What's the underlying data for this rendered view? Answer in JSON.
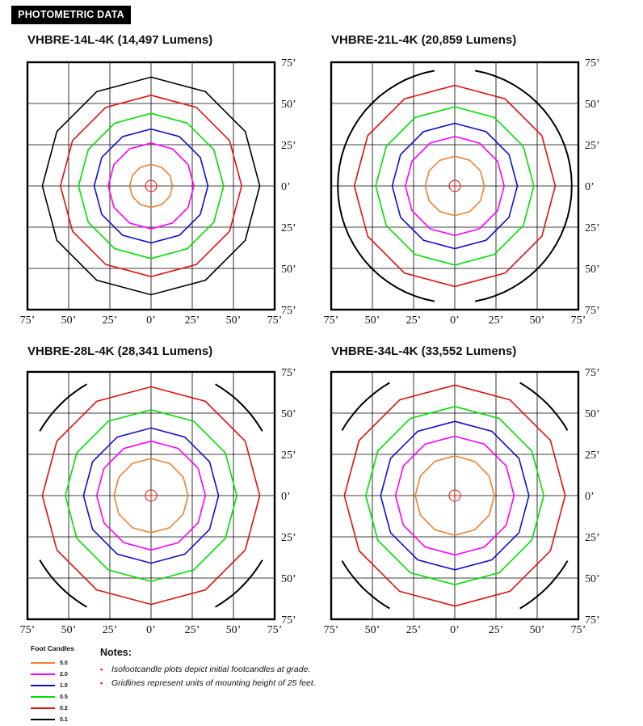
{
  "header": {
    "label": "PHOTOMETRIC DATA"
  },
  "colors": {
    "5.0": "#f08030",
    "2.0": "#ff00ff",
    "1.0": "#1010cc",
    "0.5": "#00e000",
    "0.2": "#e01010",
    "0.1": "#000000",
    "grid": "#000000",
    "source": "#e01010"
  },
  "legend": {
    "title": "Foot Candles",
    "items": [
      {
        "value": "5.0",
        "color": "#f08030"
      },
      {
        "value": "2.0",
        "color": "#ff00ff"
      },
      {
        "value": "1.0",
        "color": "#1010cc"
      },
      {
        "value": "0.5",
        "color": "#00e000"
      },
      {
        "value": "0.2",
        "color": "#e01010"
      },
      {
        "value": "0.1",
        "color": "#000000"
      }
    ]
  },
  "notes": {
    "title": "Notes:",
    "items": [
      "Isofootcandle plots depict initial footcandles at grade.",
      "Gridlines represent units of mounting height of 25 feet."
    ]
  },
  "chart_data": [
    {
      "type": "line",
      "title": "VHBRE-14L-4K (14,497 Lumens)",
      "x_ticks": [
        "75’",
        "50’",
        "25’",
        "0’",
        "25’",
        "50’",
        "75’"
      ],
      "y_ticks": [
        "75’",
        "50’",
        "25’",
        "0’",
        "25’",
        "50’",
        "75’"
      ],
      "xlim": [
        -75,
        75
      ],
      "ylim": [
        -75,
        75
      ],
      "grid": true,
      "contours": [
        {
          "fc": "5.0",
          "radius_ft": 13
        },
        {
          "fc": "2.0",
          "radius_ft": 26
        },
        {
          "fc": "1.0",
          "radius_ft": 34.5
        },
        {
          "fc": "0.5",
          "radius_ft": 44
        },
        {
          "fc": "0.2",
          "radius_ft": 55
        },
        {
          "fc": "0.1",
          "radius_ft": 66
        }
      ]
    },
    {
      "type": "line",
      "title": "VHBRE-21L-4K (20,859 Lumens)",
      "x_ticks": [
        "75’",
        "50’",
        "25’",
        "0’",
        "25’",
        "50’",
        "75’"
      ],
      "y_ticks": [
        "75’",
        "50’",
        "25’",
        "0’",
        "25’",
        "50’",
        "75’"
      ],
      "xlim": [
        -75,
        75
      ],
      "ylim": [
        -75,
        75
      ],
      "grid": true,
      "contours": [
        {
          "fc": "5.0",
          "radius_ft": 18
        },
        {
          "fc": "2.0",
          "radius_ft": 30
        },
        {
          "fc": "1.0",
          "radius_ft": 38
        },
        {
          "fc": "0.5",
          "radius_ft": 48
        },
        {
          "fc": "0.2",
          "radius_ft": 61
        },
        {
          "fc": "0.1",
          "radius_ft": 71,
          "gap_deg": [
            95,
            265
          ]
        }
      ]
    },
    {
      "type": "line",
      "title": "VHBRE-28L-4K (28,341 Lumens)",
      "x_ticks": [
        "75’",
        "50’",
        "25’",
        "0’",
        "25’",
        "50’",
        "75’"
      ],
      "y_ticks": [
        "75’",
        "50’",
        "25’",
        "0’",
        "25’",
        "50’",
        "75’"
      ],
      "xlim": [
        -75,
        75
      ],
      "ylim": [
        -75,
        75
      ],
      "grid": true,
      "contours": [
        {
          "fc": "5.0",
          "radius_ft": 22.5
        },
        {
          "fc": "2.0",
          "radius_ft": 33
        },
        {
          "fc": "1.0",
          "radius_ft": 41
        },
        {
          "fc": "0.5",
          "radius_ft": 52
        },
        {
          "fc": "0.2",
          "radius_ft": 66
        },
        {
          "fc": "0.1",
          "radius_ft": 78,
          "clipped": true
        }
      ]
    },
    {
      "type": "line",
      "title": "VHBRE-34L-4K (33,552 Lumens)",
      "x_ticks": [
        "75’",
        "50’",
        "25’",
        "0’",
        "25’",
        "50’",
        "75’"
      ],
      "y_ticks": [
        "75’",
        "50’",
        "25’",
        "0’",
        "25’",
        "50’",
        "75’"
      ],
      "xlim": [
        -75,
        75
      ],
      "ylim": [
        -75,
        75
      ],
      "grid": true,
      "contours": [
        {
          "fc": "5.0",
          "radius_ft": 24
        },
        {
          "fc": "2.0",
          "radius_ft": 36
        },
        {
          "fc": "1.0",
          "radius_ft": 45
        },
        {
          "fc": "0.5",
          "radius_ft": 54
        },
        {
          "fc": "0.2",
          "radius_ft": 67
        },
        {
          "fc": "0.1",
          "radius_ft": 79,
          "clipped": true
        }
      ]
    }
  ]
}
